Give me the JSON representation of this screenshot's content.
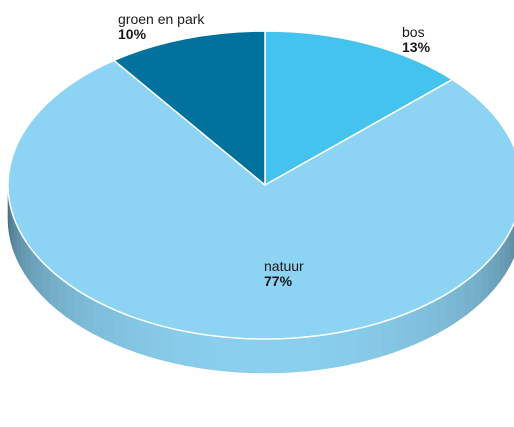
{
  "chart_data": {
    "type": "pie",
    "title": "",
    "slices": [
      {
        "name": "bos",
        "label": "13%",
        "value": 13,
        "color": "#45c3ef"
      },
      {
        "name": "natuur",
        "label": "77%",
        "value": 77,
        "color": "#8dd3f3"
      },
      {
        "name": "groen en park",
        "label": "10%",
        "value": 10,
        "color": "#00719d"
      }
    ],
    "legend": "none"
  }
}
